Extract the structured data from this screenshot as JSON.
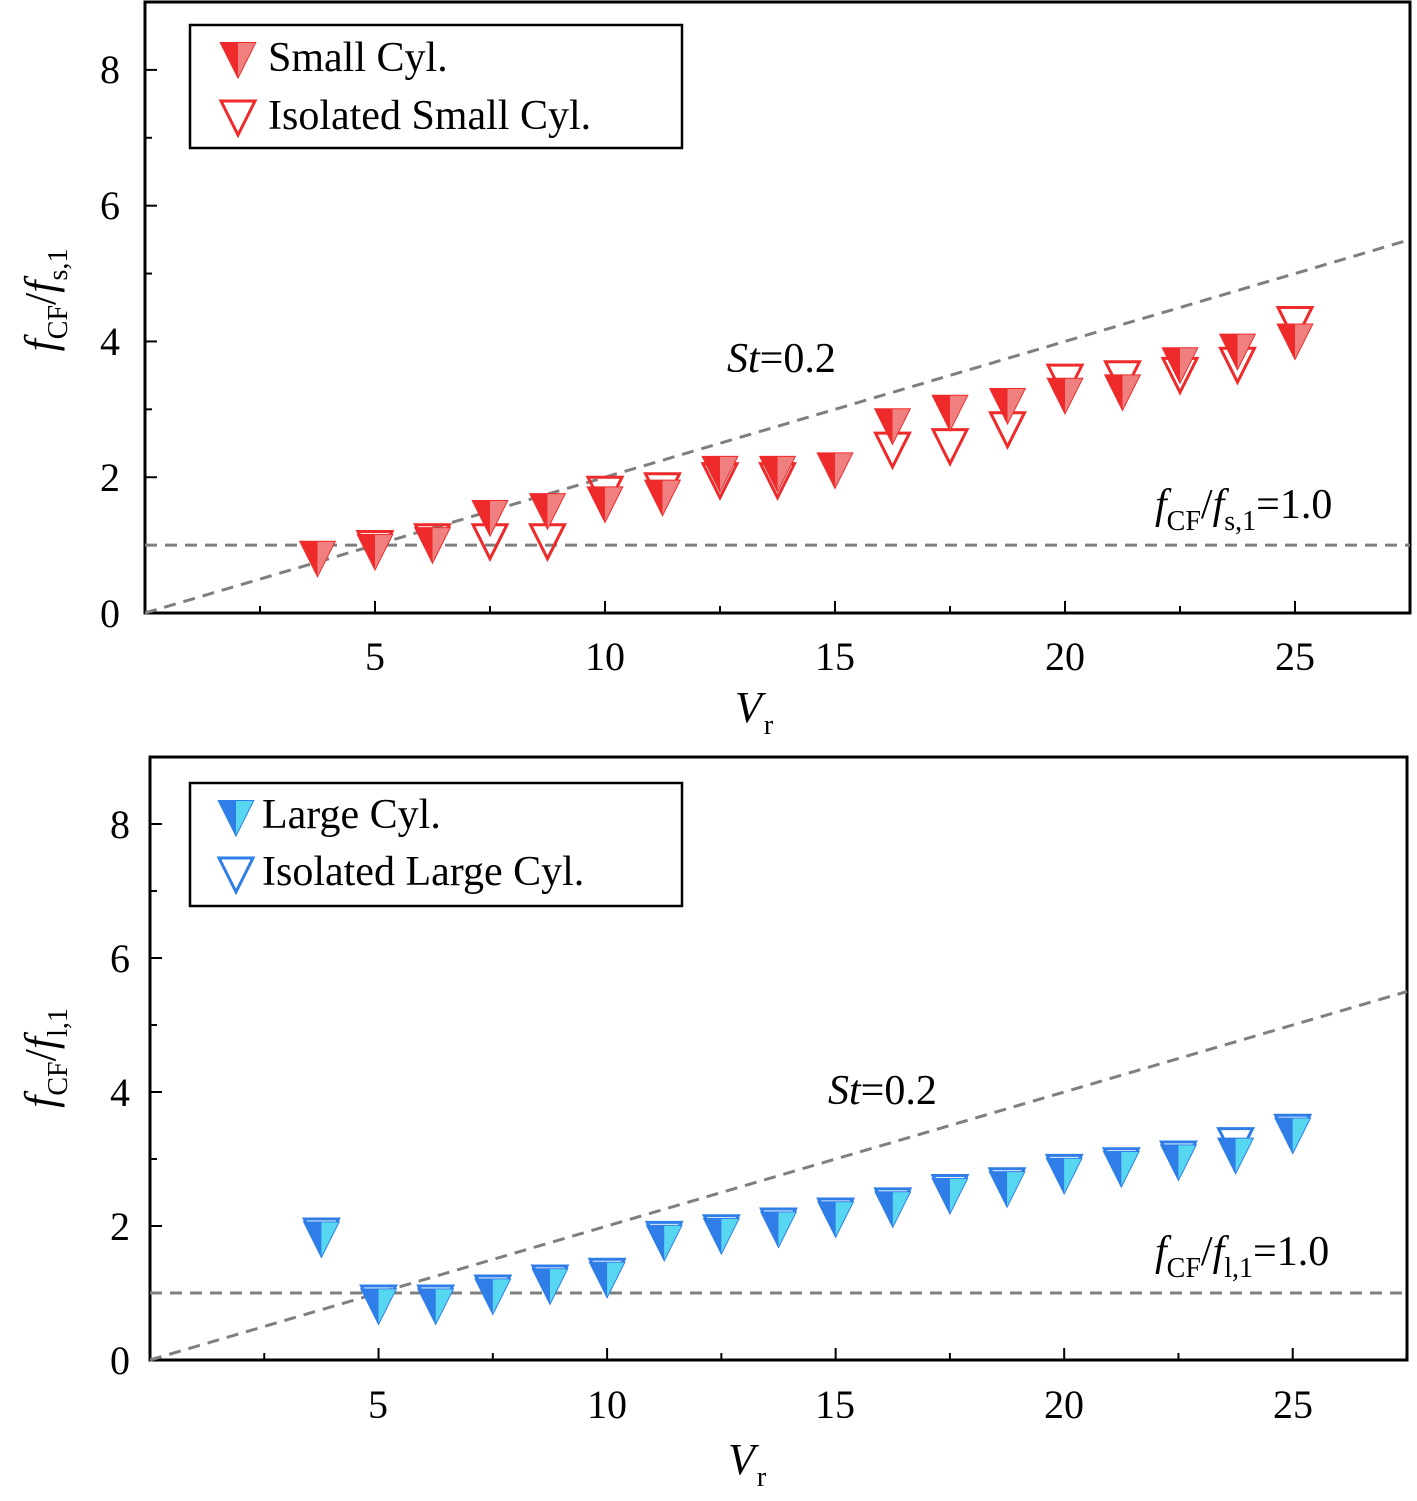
{
  "chart_data": [
    {
      "type": "scatter",
      "xlim": [
        0,
        27.5
      ],
      "ylim": [
        0,
        9
      ],
      "xticks": [
        5,
        10,
        15,
        20,
        25
      ],
      "yticks": [
        0,
        2,
        4,
        6,
        8
      ],
      "xlabel": {
        "main": "V",
        "sub": "r"
      },
      "ylabel": {
        "f1": "f",
        "sub1": "CF",
        "slash": "/",
        "f2": "f",
        "sub2": "s,1"
      },
      "annotations": {
        "st": {
          "italic": "St",
          "rest": "=0.2"
        },
        "unity": {
          "f1": "f",
          "sub1": "CF",
          "slash": "/",
          "f2": "f",
          "sub2": "s,1",
          "rest": "=1.0"
        }
      },
      "reference_lines": {
        "st_slope": 0.2,
        "unity": 1.0,
        "color": "#7f7f7f"
      },
      "legend_position": "top-left",
      "colors": {
        "solid_fill": "#ee2a2a",
        "half_fill": "#f08080",
        "stroke": "#ee2a2a"
      },
      "series": [
        {
          "name": "Small Cyl.",
          "marker": "filled-down-triangle",
          "x": [
            3.75,
            5.0,
            6.25,
            7.5,
            8.75,
            10.0,
            11.25,
            12.5,
            13.75,
            15.0,
            16.25,
            17.5,
            18.75,
            20.0,
            21.25,
            22.5,
            23.75,
            25.0
          ],
          "y": [
            0.8,
            0.9,
            1.0,
            1.4,
            1.5,
            1.6,
            1.7,
            2.05,
            2.05,
            2.1,
            2.75,
            2.95,
            3.05,
            3.2,
            3.25,
            3.65,
            3.85,
            4.0
          ]
        },
        {
          "name": "Isolated Small Cyl.",
          "marker": "open-down-triangle",
          "x": [
            5.0,
            6.25,
            7.5,
            8.75,
            10.0,
            11.25,
            12.5,
            13.75,
            16.25,
            17.5,
            18.75,
            20.0,
            21.25,
            22.5,
            23.75,
            25.0
          ],
          "y": [
            0.95,
            1.05,
            1.05,
            1.05,
            1.75,
            1.8,
            1.95,
            1.95,
            2.4,
            2.45,
            2.7,
            3.4,
            3.45,
            3.5,
            3.65,
            4.25
          ]
        }
      ]
    },
    {
      "type": "scatter",
      "xlim": [
        0,
        27.5
      ],
      "ylim": [
        0,
        9
      ],
      "xticks": [
        5,
        10,
        15,
        20,
        25
      ],
      "yticks": [
        0,
        2,
        4,
        6,
        8
      ],
      "xlabel": {
        "main": "V",
        "sub": "r"
      },
      "ylabel": {
        "f1": "f",
        "sub1": "CF",
        "slash": "/",
        "f2": "f",
        "sub2": "l,1"
      },
      "annotations": {
        "st": {
          "italic": "St",
          "rest": "=0.2"
        },
        "unity": {
          "f1": "f",
          "sub1": "CF",
          "slash": "/",
          "f2": "f",
          "sub2": "l,1",
          "rest": "=1.0"
        }
      },
      "reference_lines": {
        "st_slope": 0.2,
        "unity": 1.0,
        "color": "#7f7f7f"
      },
      "legend_position": "top-left",
      "colors": {
        "solid_fill": "#2f7ee8",
        "half_fill": "#57d6f0",
        "stroke": "#2f7ee8"
      },
      "series": [
        {
          "name": "Large Cyl.",
          "marker": "filled-down-triangle",
          "x": [
            3.75,
            5.0,
            6.25,
            7.5,
            8.75,
            10.0,
            11.25,
            12.5,
            13.75,
            15.0,
            16.25,
            17.5,
            18.75,
            20.0,
            21.25,
            22.5,
            23.75,
            25.0
          ],
          "y": [
            1.8,
            0.8,
            0.8,
            0.95,
            1.1,
            1.2,
            1.75,
            1.85,
            1.95,
            2.1,
            2.25,
            2.45,
            2.55,
            2.75,
            2.85,
            2.95,
            3.05,
            3.35
          ]
        },
        {
          "name": "Isolated Large Cyl.",
          "marker": "open-down-triangle",
          "x": [
            3.75,
            5.0,
            6.25,
            7.5,
            8.75,
            10.0,
            11.25,
            12.5,
            13.75,
            15.0,
            16.25,
            17.5,
            18.75,
            20.0,
            21.25,
            22.5,
            23.75,
            25.0
          ],
          "y": [
            1.85,
            0.85,
            0.85,
            1.0,
            1.15,
            1.25,
            1.8,
            1.9,
            2.0,
            2.15,
            2.3,
            2.5,
            2.6,
            2.8,
            2.9,
            3.0,
            3.2,
            3.4
          ]
        }
      ]
    }
  ]
}
